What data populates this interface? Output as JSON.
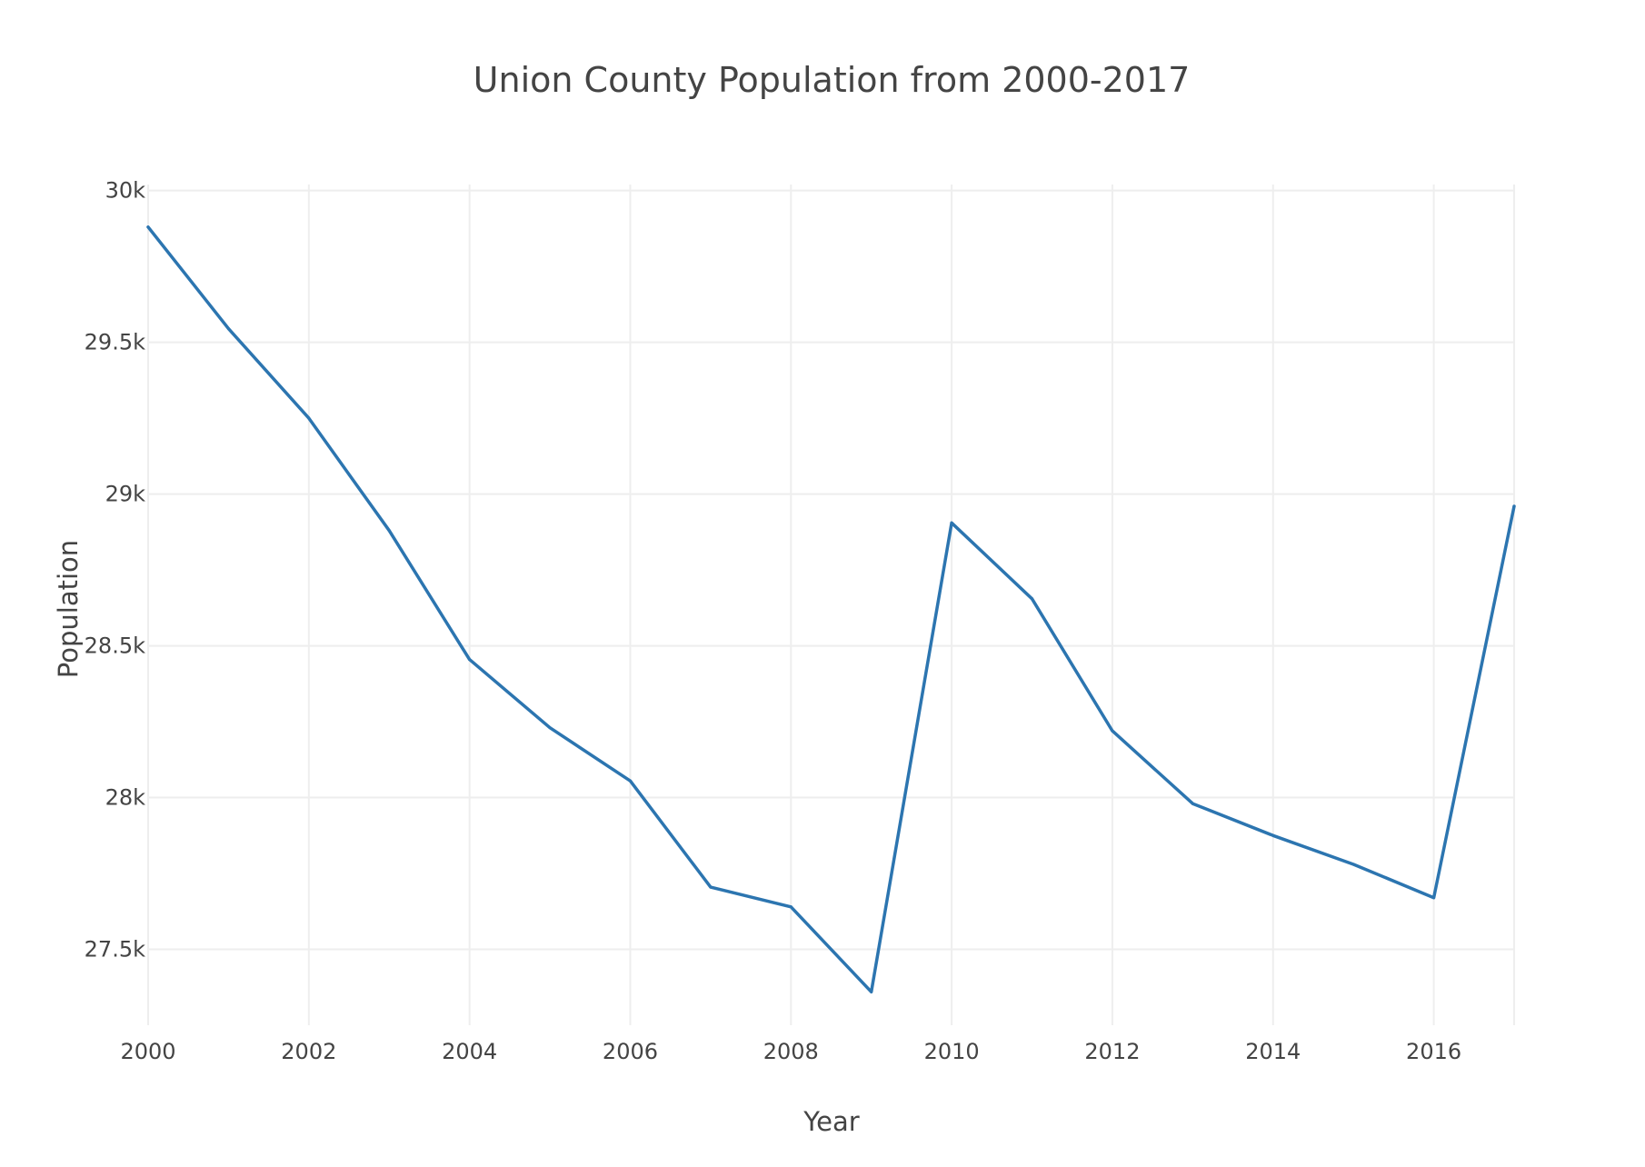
{
  "chart_data": {
    "type": "line",
    "title": "Union County Population from 2000-2017",
    "xlabel": "Year",
    "ylabel": "Population",
    "xlim": [
      2000,
      2017
    ],
    "ylim": [
      27250,
      30020
    ],
    "x_ticks": [
      2000,
      2002,
      2004,
      2006,
      2008,
      2010,
      2012,
      2014,
      2016
    ],
    "x_tick_labels": [
      "2000",
      "2002",
      "2004",
      "2006",
      "2008",
      "2010",
      "2012",
      "2014",
      "2016"
    ],
    "y_ticks": [
      27500,
      28000,
      28500,
      29000,
      29500,
      30000
    ],
    "y_tick_labels": [
      "27.5k",
      "28k",
      "28.5k",
      "29k",
      "29.5k",
      "30k"
    ],
    "grid": true,
    "series": [
      {
        "color": "#2c75b0",
        "x": [
          2000,
          2001,
          2002,
          2003,
          2004,
          2005,
          2006,
          2007,
          2008,
          2009,
          2010,
          2011,
          2012,
          2013,
          2014,
          2015,
          2016,
          2017
        ],
        "y": [
          29880,
          29545,
          29250,
          28880,
          28455,
          28230,
          28055,
          27705,
          27640,
          27360,
          28905,
          28655,
          28220,
          27980,
          27875,
          27780,
          27670,
          28960
        ]
      }
    ]
  }
}
